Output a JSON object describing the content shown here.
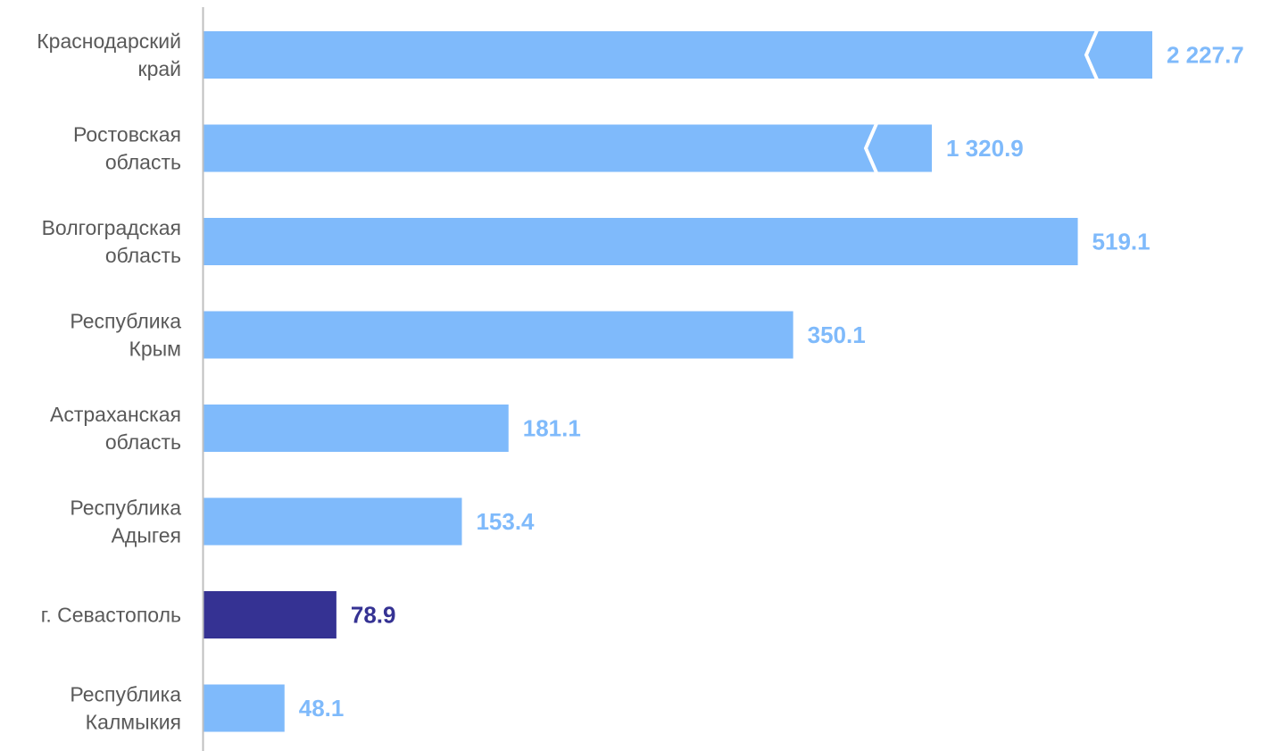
{
  "chart_data": {
    "type": "bar",
    "orientation": "horizontal",
    "axis_broken_for": [
      "Краснодарский край",
      "Ростовская область"
    ],
    "categories": [
      "Краснодарский край",
      "Ростовская область",
      "Волгоградская область",
      "Республика Крым",
      "Астраханская область",
      "Республика Адыгея",
      "г. Севастополь",
      "Республика Калмыкия"
    ],
    "category_lines": [
      [
        "Краснодарский",
        "край"
      ],
      [
        "Ростовская",
        "область"
      ],
      [
        "Волгоградская",
        "область"
      ],
      [
        "Республика",
        "Крым"
      ],
      [
        "Астраханская",
        "область"
      ],
      [
        "Республика",
        "Адыгея"
      ],
      [
        "г. Севастополь"
      ],
      [
        "Республика",
        "Калмыкия"
      ]
    ],
    "values": [
      2227.7,
      1320.9,
      519.1,
      350.1,
      181.1,
      153.4,
      78.9,
      48.1
    ],
    "value_labels": [
      "2 227.7",
      "1 320.9",
      "519.1",
      "350.1",
      "181.1",
      "153.4",
      "78.9",
      "48.1"
    ],
    "highlight_category": "г. Севастополь",
    "colors": {
      "bar": "#7fbafb",
      "highlight": "#353293",
      "axis": "#bfbfbf",
      "category_text": "#595959"
    },
    "title": "",
    "xlabel": "",
    "ylabel": "",
    "grid": false,
    "legend": "none"
  }
}
